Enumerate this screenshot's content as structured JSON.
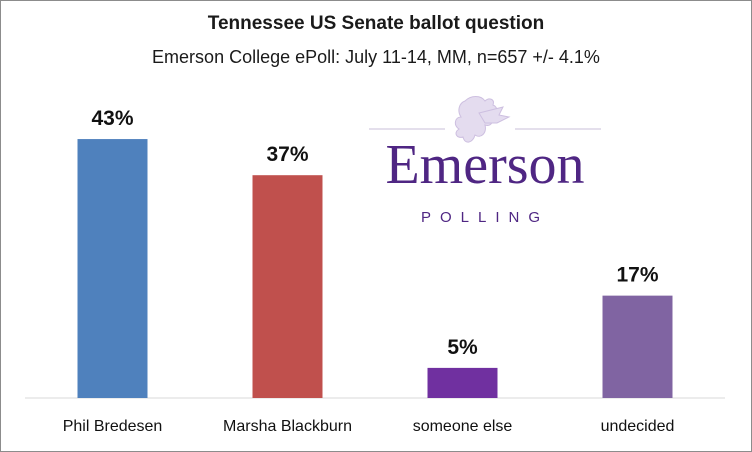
{
  "chart_data": {
    "type": "bar",
    "title": "Tennessee US Senate ballot question",
    "subtitle": "Emerson College ePoll: July 11-14, MM, n=657 +/- 4.1%",
    "categories": [
      "Phil Bredesen",
      "Marsha Blackburn",
      "someone else",
      "undecided"
    ],
    "values": [
      43,
      37,
      5,
      17
    ],
    "data_labels": [
      "43%",
      "37%",
      "5%",
      "17%"
    ],
    "colors": [
      "#4f81bd",
      "#c0504d",
      "#7030a0",
      "#8064a2"
    ],
    "xlabel": "",
    "ylabel": "",
    "ylim": [
      0,
      46
    ],
    "grid": false,
    "legend": "none"
  },
  "logo": {
    "word": "Emerson",
    "sub": "POLLING",
    "color": "#4f2683",
    "icon": "lion-crest-icon"
  }
}
